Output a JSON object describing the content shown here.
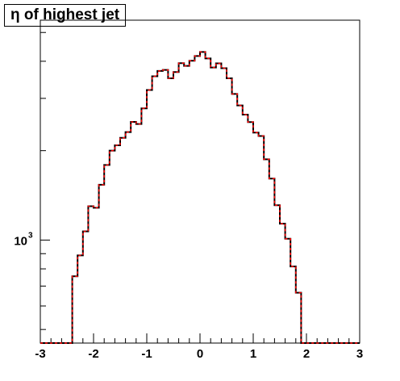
{
  "chart_data": {
    "type": "histogram",
    "title": "η of highest jet",
    "xlabel": "",
    "ylabel": "",
    "xlim": [
      -3,
      3
    ],
    "ylim": [
      450,
      5500
    ],
    "yscale": "log",
    "x_ticks": [
      {
        "value": -3,
        "label": "-3"
      },
      {
        "value": -2,
        "label": "-2"
      },
      {
        "value": -1,
        "label": "-1"
      },
      {
        "value": 0,
        "label": "0"
      },
      {
        "value": 1,
        "label": "1"
      },
      {
        "value": 2,
        "label": "2"
      },
      {
        "value": 3,
        "label": "3"
      }
    ],
    "y_ticks": [
      {
        "value": 1000,
        "label_base": "10",
        "label_exp": "3"
      }
    ],
    "grid": false,
    "legend": "none",
    "bin_edges": [
      -3.0,
      -2.9,
      -2.8,
      -2.7,
      -2.6,
      -2.5,
      -2.4,
      -2.3,
      -2.2,
      -2.1,
      -2.0,
      -1.9,
      -1.8,
      -1.7,
      -1.6,
      -1.5,
      -1.4,
      -1.3,
      -1.2,
      -1.1,
      -1.0,
      -0.9,
      -0.8,
      -0.7,
      -0.6,
      -0.5,
      -0.4,
      -0.3,
      -0.2,
      -0.1,
      0.0,
      0.1,
      0.2,
      0.3,
      0.4,
      0.5,
      0.6,
      0.7,
      0.8,
      0.9,
      1.0,
      1.1,
      1.2,
      1.3,
      1.4,
      1.5,
      1.6,
      1.7,
      1.8,
      1.9,
      2.0,
      2.1,
      2.2,
      2.3,
      2.4,
      2.5,
      2.6,
      2.7,
      2.8,
      2.9,
      3.0
    ],
    "series": [
      {
        "style": "solid",
        "color": "#000000",
        "values": [
          450,
          450,
          450,
          450,
          450,
          450,
          755,
          888,
          1070,
          1300,
          1285,
          1535,
          1790,
          2000,
          2085,
          2210,
          2310,
          2500,
          2460,
          2775,
          3200,
          3560,
          3710,
          3740,
          3505,
          3680,
          3940,
          3860,
          4015,
          4165,
          4300,
          4090,
          3810,
          3935,
          3790,
          3505,
          3105,
          2840,
          2645,
          2495,
          2300,
          2240,
          1870,
          1610,
          1310,
          1135,
          1010,
          815,
          665,
          450,
          450,
          450,
          450,
          450,
          450,
          450,
          450,
          450,
          450,
          450
        ]
      },
      {
        "style": "dashed",
        "color": "#ff0000",
        "values": [
          450,
          450,
          450,
          450,
          450,
          450,
          755,
          888,
          1070,
          1300,
          1285,
          1535,
          1790,
          2000,
          2085,
          2210,
          2310,
          2500,
          2460,
          2775,
          3200,
          3560,
          3710,
          3740,
          3505,
          3680,
          3940,
          3860,
          4015,
          4165,
          4300,
          4090,
          3810,
          3935,
          3790,
          3505,
          3105,
          2840,
          2645,
          2495,
          2300,
          2240,
          1870,
          1610,
          1310,
          1135,
          1010,
          815,
          665,
          450,
          450,
          450,
          450,
          450,
          450,
          450,
          450,
          450,
          450,
          450
        ]
      }
    ]
  }
}
